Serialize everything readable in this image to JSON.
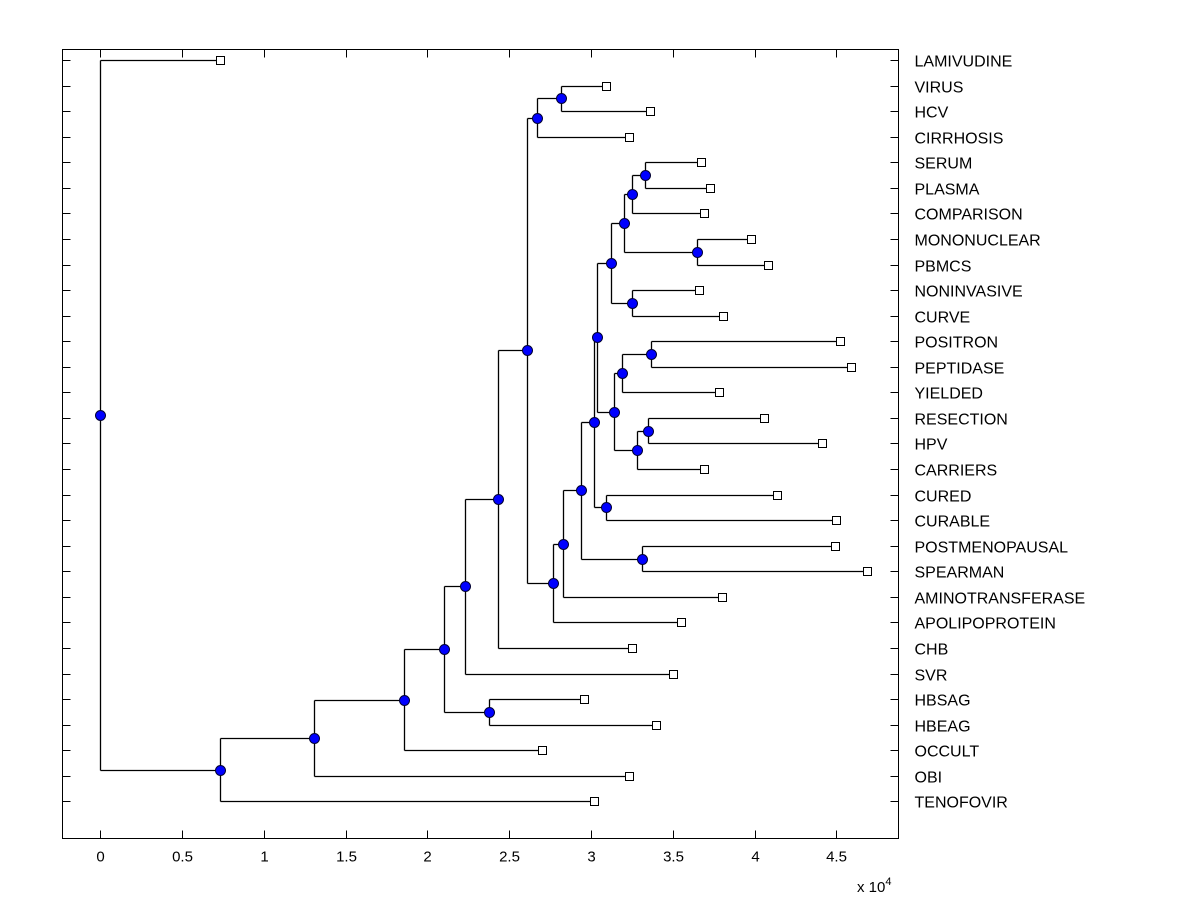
{
  "chart_data": {
    "type": "dendrogram",
    "title": "",
    "xlabel": "",
    "ylabel": "",
    "x_multiplier_label": "x 10",
    "x_multiplier_exponent": "4",
    "xlim": [
      -0.23,
      4.88
    ],
    "ylim_rows": [
      0.59,
      31.45
    ],
    "x_ticks": [
      0,
      0.5,
      1,
      1.5,
      2,
      2.5,
      3,
      3.5,
      4,
      4.5
    ],
    "x_tick_labels": [
      "0",
      "0.5",
      "1",
      "1.5",
      "2",
      "2.5",
      "3",
      "3.5",
      "4",
      "4.5"
    ],
    "grid": false,
    "colors": {
      "line": "#000000",
      "internal_node_fill": "#0000ff",
      "internal_node_edge": "#000033",
      "leaf_fill": "#ffffff",
      "leaf_edge": "#000000"
    },
    "leaves": [
      {
        "label": "LAMIVUDINE",
        "x": 0.73
      },
      {
        "label": "VIRUS",
        "x": 3.09
      },
      {
        "label": "HCV",
        "x": 3.36
      },
      {
        "label": "CIRRHOSIS",
        "x": 3.23
      },
      {
        "label": "SERUM",
        "x": 3.67
      },
      {
        "label": "PLASMA",
        "x": 3.73
      },
      {
        "label": "COMPARISON",
        "x": 3.69
      },
      {
        "label": "MONONUCLEAR",
        "x": 3.98
      },
      {
        "label": "PBMCS",
        "x": 4.08
      },
      {
        "label": "NONINVASIVE",
        "x": 3.66
      },
      {
        "label": "CURVE",
        "x": 3.81
      },
      {
        "label": "POSITRON",
        "x": 4.52
      },
      {
        "label": "PEPTIDASE",
        "x": 4.59
      },
      {
        "label": "YIELDED",
        "x": 3.78
      },
      {
        "label": "RESECTION",
        "x": 4.06
      },
      {
        "label": "HPV",
        "x": 4.41
      },
      {
        "label": "CARRIERS",
        "x": 3.69
      },
      {
        "label": "CURED",
        "x": 4.14
      },
      {
        "label": "CURABLE",
        "x": 4.5
      },
      {
        "label": "POSTMENOPAUSAL",
        "x": 4.49
      },
      {
        "label": "SPEARMAN",
        "x": 4.69
      },
      {
        "label": "AMINOTRANSFERASE",
        "x": 3.8
      },
      {
        "label": "APOLIPOPROTEIN",
        "x": 3.55
      },
      {
        "label": "CHB",
        "x": 3.25
      },
      {
        "label": "SVR",
        "x": 3.5
      },
      {
        "label": "HBSAG",
        "x": 2.96
      },
      {
        "label": "HBEAG",
        "x": 3.4
      },
      {
        "label": "OCCULT",
        "x": 2.7
      },
      {
        "label": "OBI",
        "x": 3.23
      },
      {
        "label": "TENOFOVIR",
        "x": 3.02
      }
    ],
    "internal_nodes": [
      {
        "id": "n_root",
        "x": 0.0,
        "children": [
          "LAMIVUDINE",
          "n_teno"
        ]
      },
      {
        "id": "n_teno",
        "x": 0.73,
        "children": [
          "n_obi",
          "TENOFOVIR"
        ]
      },
      {
        "id": "n_obi",
        "x": 1.31,
        "children": [
          "n_occult",
          "OBI"
        ]
      },
      {
        "id": "n_occult",
        "x": 1.86,
        "children": [
          "n_hb",
          "OCCULT"
        ]
      },
      {
        "id": "n_hb",
        "x": 2.1,
        "children": [
          "n_svr",
          "n_hbsag"
        ]
      },
      {
        "id": "n_hbsag",
        "x": 2.38,
        "children": [
          "HBSAG",
          "HBEAG"
        ]
      },
      {
        "id": "n_svr",
        "x": 2.23,
        "children": [
          "n_chb",
          "SVR"
        ]
      },
      {
        "id": "n_chb",
        "x": 2.43,
        "children": [
          "n_main",
          "CHB"
        ]
      },
      {
        "id": "n_main",
        "x": 2.61,
        "children": [
          "n_cirr",
          "n_apo"
        ]
      },
      {
        "id": "n_cirr",
        "x": 2.67,
        "children": [
          "n_virus",
          "CIRRHOSIS"
        ]
      },
      {
        "id": "n_virus",
        "x": 2.82,
        "children": [
          "VIRUS",
          "HCV"
        ]
      },
      {
        "id": "n_apo",
        "x": 2.77,
        "children": [
          "n_amino",
          "APOLIPOPROTEIN"
        ]
      },
      {
        "id": "n_amino",
        "x": 2.83,
        "children": [
          "n_big",
          "AMINOTRANSFERASE"
        ]
      },
      {
        "id": "n_big",
        "x": 2.94,
        "children": [
          "n_cure",
          "n_spear"
        ]
      },
      {
        "id": "n_spear",
        "x": 3.31,
        "children": [
          "POSTMENOPAUSAL",
          "SPEARMAN"
        ]
      },
      {
        "id": "n_cure",
        "x": 3.02,
        "children": [
          "n_mid",
          "n_cured"
        ]
      },
      {
        "id": "n_cured",
        "x": 3.09,
        "children": [
          "CURED",
          "CURABLE"
        ]
      },
      {
        "id": "n_mid",
        "x": 3.04,
        "children": [
          "n_blood",
          "n_resect"
        ]
      },
      {
        "id": "n_blood",
        "x": 3.12,
        "children": [
          "n_mono",
          "n_curve"
        ]
      },
      {
        "id": "n_curve",
        "x": 3.25,
        "children": [
          "NONINVASIVE",
          "CURVE"
        ]
      },
      {
        "id": "n_mono",
        "x": 3.2,
        "children": [
          "n_comp",
          "n_pbmcs"
        ]
      },
      {
        "id": "n_pbmcs",
        "x": 3.65,
        "children": [
          "MONONUCLEAR",
          "PBMCS"
        ]
      },
      {
        "id": "n_comp",
        "x": 3.25,
        "children": [
          "n_serum",
          "COMPARISON"
        ]
      },
      {
        "id": "n_serum",
        "x": 3.33,
        "children": [
          "SERUM",
          "PLASMA"
        ]
      },
      {
        "id": "n_resect",
        "x": 3.14,
        "children": [
          "n_yield",
          "n_carriers"
        ]
      },
      {
        "id": "n_yield",
        "x": 3.19,
        "children": [
          "n_positron",
          "YIELDED"
        ]
      },
      {
        "id": "n_positron",
        "x": 3.37,
        "children": [
          "POSITRON",
          "PEPTIDASE"
        ]
      },
      {
        "id": "n_carriers",
        "x": 3.28,
        "children": [
          "n_hpv",
          "CARRIERS"
        ]
      },
      {
        "id": "n_hpv",
        "x": 3.35,
        "children": [
          "RESECTION",
          "HPV"
        ]
      }
    ]
  }
}
